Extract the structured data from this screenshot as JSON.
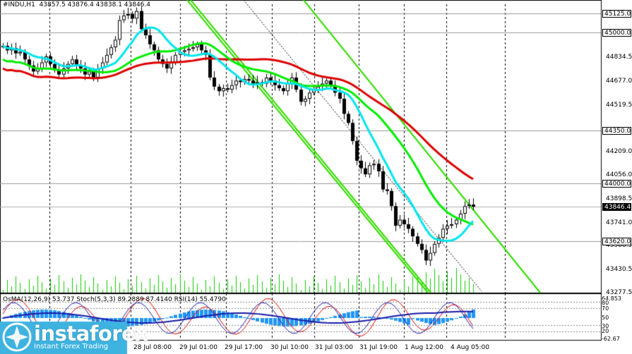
{
  "header": {
    "symbol": "#INDU,H1",
    "ohlc": "43857.5 43876.4 43838.1 43846.4"
  },
  "price_axis": {
    "current_price": "43846.4",
    "marked_levels": [
      "45125.0",
      "45000.0",
      "44350.0",
      "44000.0",
      "43620.0"
    ],
    "ticks": [
      "44834.5",
      "44677.0",
      "44519.5",
      "44209.0",
      "44056.0",
      "43898.5",
      "43741.0",
      "43588.5",
      "43430.5",
      "43277.5"
    ]
  },
  "time_axis": [
    "28 Jul 08:00",
    "29 Jul 01:00",
    "29 Jul 17:00",
    "30 Jul 10:00",
    "31 Jul 03:00",
    "31 Jul 19:00",
    "1 Aug 12:00",
    "4 Aug 05:00"
  ],
  "oscillator": {
    "label": "OsMA(12,26,9) 53.737  Stoch(5,3,3) 89.2889 87.4140  RSI(14) 55.4790",
    "levels": [
      "64.853",
      "80",
      "70",
      "50",
      "30",
      "20",
      "-62.67"
    ]
  },
  "watermark": {
    "brand": "instaforex",
    "tagline": "Instant Forex Trading"
  },
  "colors": {
    "candles": "#000000",
    "ma_fast": "#00e5ee",
    "ma_mid": "#00ee00",
    "ma_slow": "#dd0000",
    "channel": "#33dd00",
    "volume": "#11cc00",
    "osma": "#2196f3",
    "stoch_main": "#1a1aa8",
    "stoch_signal": "#dd0000",
    "rsi": "#1a1aa8"
  },
  "chart_data": {
    "type": "candlestick",
    "y_range": [
      43277.5,
      45185
    ],
    "close_series": [
      44910,
      44880,
      44895,
      44860,
      44870,
      44820,
      44780,
      44740,
      44760,
      44800,
      44840,
      44790,
      44750,
      44720,
      44760,
      44790,
      44820,
      44780,
      44760,
      44720,
      44740,
      44700,
      44760,
      44800,
      44850,
      44900,
      44950,
      45080,
      45110,
      45120,
      45090,
      45140,
      45020,
      44980,
      44920,
      44880,
      44820,
      44790,
      44760,
      44800,
      44850,
      44870,
      44880,
      44890,
      44900,
      44920,
      44880,
      44850,
      44700,
      44640,
      44610,
      44630,
      44620,
      44650,
      44680,
      44670,
      44690,
      44680,
      44660,
      44670,
      44660,
      44700,
      44680,
      44650,
      44630,
      44610,
      44660,
      44700,
      44620,
      44540,
      44560,
      44600,
      44620,
      44640,
      44660,
      44680,
      44650,
      44600,
      44560,
      44460,
      44400,
      44280,
      44150,
      44100,
      44060,
      44120,
      44130,
      44080,
      43960,
      43950,
      43850,
      43720,
      43760,
      43730,
      43700,
      43650,
      43600,
      43560,
      43490,
      43540,
      43600,
      43640,
      43700,
      43720,
      43730,
      43760,
      43800,
      43850,
      43860,
      43846.4
    ]
  }
}
